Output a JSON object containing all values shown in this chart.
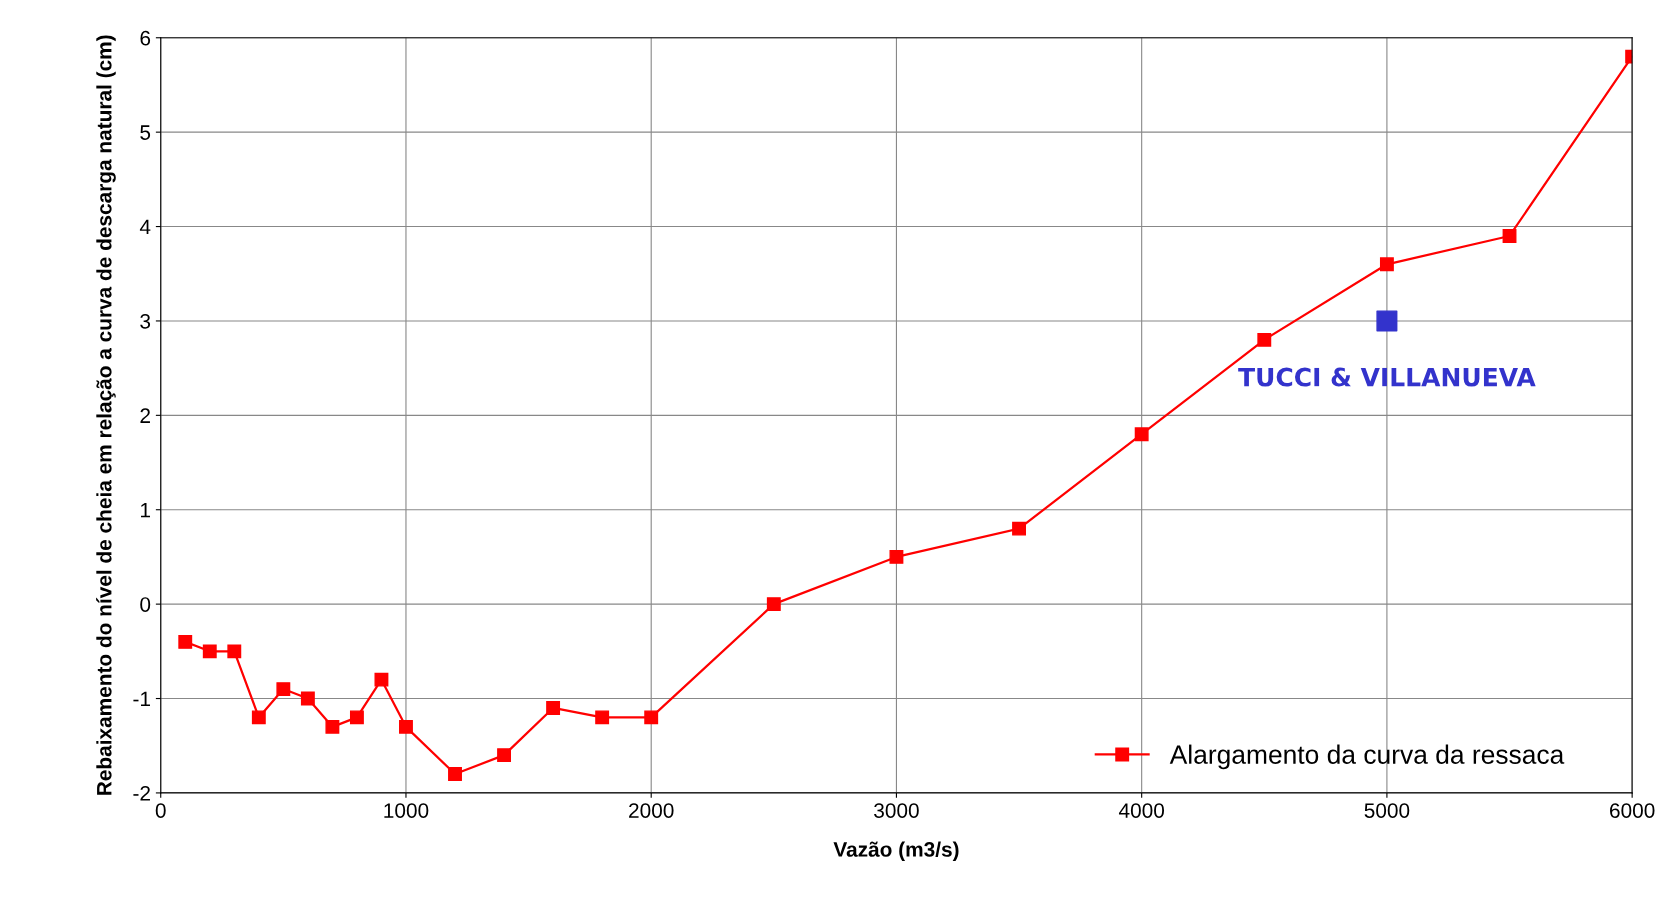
{
  "chart_data": {
    "type": "line",
    "xlabel": "Vazão (m3/s)",
    "ylabel": "Rebaixamento do nível de cheia em relação a curva de descarga natural (cm)",
    "xlim": [
      0,
      6000
    ],
    "xticks": [
      0,
      1000,
      2000,
      3000,
      4000,
      5000,
      6000
    ],
    "ylim": [
      -2,
      6
    ],
    "yticks": [
      -2,
      -1,
      0,
      1,
      2,
      3,
      4,
      5,
      6
    ],
    "grid": true,
    "legend": "bottom right",
    "marker": "square",
    "line_style": "solid",
    "series": [
      {
        "name": "Alargamento da curva da ressaca",
        "color": "#ff0000",
        "x": [
          100,
          200,
          300,
          400,
          500,
          600,
          700,
          800,
          900,
          1000,
          1200,
          1400,
          1600,
          1800,
          2000,
          2500,
          3000,
          3500,
          4000,
          4500,
          5000,
          5500,
          6000
        ],
        "values": [
          -0.4,
          -0.5,
          -0.5,
          -1.2,
          -0.9,
          -1.0,
          -1.3,
          -1.2,
          -0.8,
          -1.3,
          -1.8,
          -1.6,
          -1.1,
          -1.2,
          -1.2,
          0,
          0.5,
          0.8,
          1.8,
          2.8,
          3.6,
          3.9,
          5.8
        ]
      },
      {
        "type": "scatter",
        "color": "#3333cc",
        "x": [
          5000
        ],
        "values": [
          3.0
        ]
      }
    ],
    "annotations": [
      {
        "text": "TUCCI & VILLANUEVA",
        "x": 5000,
        "y": 3.0
      }
    ]
  }
}
